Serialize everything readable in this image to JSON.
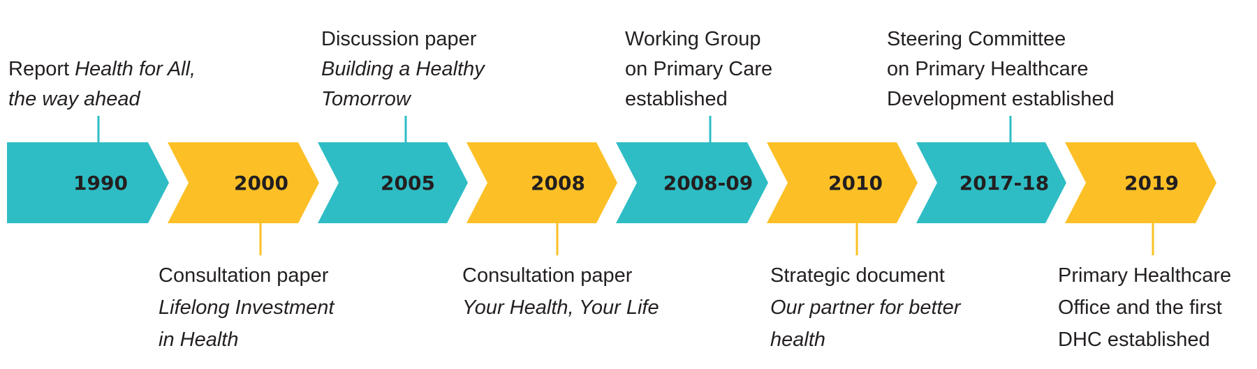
{
  "colors": {
    "teal": "#2ebdc4",
    "yellow": "#fcc026",
    "text": "#231f20"
  },
  "segments": [
    {
      "year": "1990",
      "color": "teal"
    },
    {
      "year": "2000",
      "color": "yellow"
    },
    {
      "year": "2005",
      "color": "teal"
    },
    {
      "year": "2008",
      "color": "yellow"
    },
    {
      "year": "2008-09",
      "color": "teal"
    },
    {
      "year": "2010",
      "color": "yellow"
    },
    {
      "year": "2017-18",
      "color": "teal"
    },
    {
      "year": "2019",
      "color": "yellow"
    }
  ],
  "events": {
    "e1990": {
      "line1": "Report ",
      "line1_italic": "Health for All,",
      "line2_italic": "the way ahead"
    },
    "e2000": {
      "line1": "Consultation paper",
      "line2_italic": "Lifelong Investment",
      "line3_italic": "in Health"
    },
    "e2005": {
      "line1": "Discussion paper",
      "line2_italic": "Building a Healthy",
      "line3_italic": "Tomorrow"
    },
    "e2008": {
      "line1": "Consultation paper",
      "line2_italic": "Your Health, Your Life"
    },
    "e200809": {
      "line1": "Working Group",
      "line2": "on Primary Care",
      "line3": "established"
    },
    "e2010": {
      "line1": "Strategic document",
      "line2_italic": "Our partner for better",
      "line3_italic": "health"
    },
    "e201718": {
      "line1": "Steering Committee",
      "line2": "on Primary Healthcare",
      "line3": "Development established"
    },
    "e2019": {
      "line1": "Primary Healthcare",
      "line2": "Office and the first",
      "line3": "DHC established"
    }
  }
}
